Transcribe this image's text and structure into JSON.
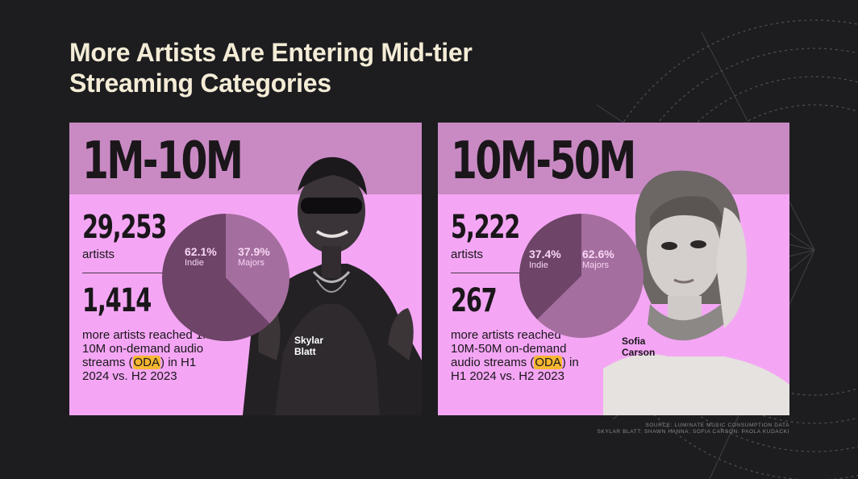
{
  "title": "More Artists Are Entering Mid-tier Streaming Categories",
  "panels": [
    {
      "tier": "1M-10M",
      "artists_count": "29,253",
      "artists_label": "artists",
      "growth_count": "1,414",
      "growth_text_before": "more artists reached 1M-10M on-demand audio streams (",
      "growth_highlight": "ODA",
      "growth_text_after": ") in H1 2024 vs. H2 2023",
      "artist_caption": "Skylar Blatt",
      "pie": {
        "indie_pct": "62.1%",
        "indie_label": "Indie",
        "majors_pct": "37.9%",
        "majors_label": "Majors"
      }
    },
    {
      "tier": "10M-50M",
      "artists_count": "5,222",
      "artists_label": "artists",
      "growth_count": "267",
      "growth_text_before": "more artists reached 10M-50M on-demand audio streams (",
      "growth_highlight": "ODA",
      "growth_text_after": ") in H1 2024 vs. H2 2023",
      "artist_caption": "Sofia Carson",
      "pie": {
        "indie_pct": "37.4%",
        "indie_label": "Indie",
        "majors_pct": "62.6%",
        "majors_label": "Majors"
      }
    }
  ],
  "source": "SOURCE: LUMINATE MUSIC CONSUMPTION DATA",
  "photo_credit": "SKYLAR BLATT: SHAWN HANNA; SOFIA CARSON: PAOLA KUDACKI",
  "colors": {
    "background": "#1d1d20",
    "card": "#f4a6f4",
    "band": "#c98ac4",
    "indie": "#6e4468",
    "majors": "#a46e9e",
    "oda_highlight": "#f5b731",
    "title": "#f4ecd6"
  },
  "chart_data": [
    {
      "type": "pie",
      "title": "1M-10M",
      "categories": [
        "Indie",
        "Majors"
      ],
      "values": [
        62.1,
        37.9
      ]
    },
    {
      "type": "pie",
      "title": "10M-50M",
      "categories": [
        "Indie",
        "Majors"
      ],
      "values": [
        37.4,
        62.6
      ]
    }
  ]
}
